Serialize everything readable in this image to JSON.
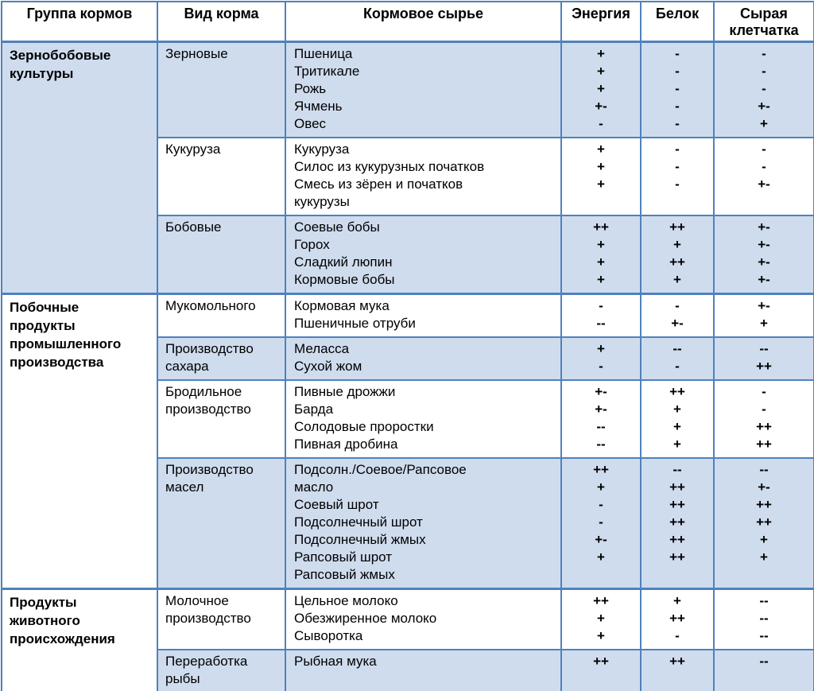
{
  "table": {
    "headers": [
      "Группа кормов",
      "Вид корма",
      "Кормовое сырье",
      "Энергия",
      "Белок",
      "Сырая клетчатка"
    ],
    "colors": {
      "band_fill": "#cfdcee",
      "border": "#4f81bd",
      "header_bg": "#ffffff",
      "text": "#000000"
    },
    "groups": [
      {
        "name": "Зернобобовые культуры",
        "subgroups": [
          {
            "feed_type": "Зерновые",
            "banded": true,
            "rows": [
              {
                "material": "Пшеница",
                "energy": "+",
                "protein": "-",
                "fiber": "-"
              },
              {
                "material": "Тритикале",
                "energy": "+",
                "protein": "-",
                "fiber": "-"
              },
              {
                "material": "Рожь",
                "energy": "+",
                "protein": "-",
                "fiber": "-"
              },
              {
                "material": "Ячмень",
                "energy": "+-",
                "protein": "-",
                "fiber": "+-"
              },
              {
                "material": "Овес",
                "energy": "-",
                "protein": "-",
                "fiber": "+"
              }
            ]
          },
          {
            "feed_type": "Кукуруза",
            "banded": false,
            "rows": [
              {
                "material": "Кукуруза",
                "energy": "+",
                "protein": "-",
                "fiber": "-"
              },
              {
                "material": "Силос из кукурузных початков",
                "energy": "+",
                "protein": "-",
                "fiber": "-"
              },
              {
                "material": "Смесь из зёрен и початков",
                "energy": "+",
                "protein": "-",
                "fiber": "+-"
              },
              {
                "material": "кукурузы",
                "energy": "",
                "protein": "",
                "fiber": ""
              }
            ]
          },
          {
            "feed_type": "Бобовые",
            "banded": true,
            "rows": [
              {
                "material": "Соевые бобы",
                "energy": "++",
                "protein": "++",
                "fiber": "+-"
              },
              {
                "material": "Горох",
                "energy": "+",
                "protein": "+",
                "fiber": "+-"
              },
              {
                "material": "Сладкий люпин",
                "energy": "+",
                "protein": "++",
                "fiber": "+-"
              },
              {
                "material": "Кормовые бобы",
                "energy": "+",
                "protein": "+",
                "fiber": "+-"
              }
            ]
          }
        ]
      },
      {
        "name": "Побочные продукты промышленного производства",
        "subgroups": [
          {
            "feed_type": "Мукомольного",
            "banded": false,
            "rows": [
              {
                "material": "Кормовая мука",
                "energy": "-",
                "protein": "-",
                "fiber": "+-"
              },
              {
                "material": "Пшеничные отруби",
                "energy": "--",
                "protein": "+-",
                "fiber": "+"
              }
            ]
          },
          {
            "feed_type": "Производство сахара",
            "banded": true,
            "rows": [
              {
                "material": "Меласса",
                "energy": "+",
                "protein": "--",
                "fiber": "--"
              },
              {
                "material": "Сухой жом",
                "energy": "-",
                "protein": "-",
                "fiber": "++"
              }
            ]
          },
          {
            "feed_type": "Бродильное производство",
            "banded": false,
            "rows": [
              {
                "material": "Пивные дрожжи",
                "energy": "+-",
                "protein": "++",
                "fiber": "-"
              },
              {
                "material": "Барда",
                "energy": "+-",
                "protein": "+",
                "fiber": "-"
              },
              {
                "material": "Солодовые проростки",
                "energy": "--",
                "protein": "+",
                "fiber": "++"
              },
              {
                "material": "Пивная дробина",
                "energy": "--",
                "protein": "+",
                "fiber": "++"
              }
            ]
          },
          {
            "feed_type": "Производство масел",
            "banded": true,
            "rows": [
              {
                "material": "Подсолн./Соевое/Рапсовое",
                "energy": "++",
                "protein": "--",
                "fiber": "--"
              },
              {
                "material": "масло",
                "energy": "+",
                "protein": "++",
                "fiber": "+-"
              },
              {
                "material": "Соевый шрот",
                "energy": "-",
                "protein": "++",
                "fiber": "++"
              },
              {
                "material": "Подсолнечный шрот",
                "energy": "-",
                "protein": "++",
                "fiber": "++"
              },
              {
                "material": "Подсолнечный жмых",
                "energy": "+-",
                "protein": "++",
                "fiber": "+"
              },
              {
                "material": "Рапсовый шрот",
                "energy": "+",
                "protein": "++",
                "fiber": "+"
              },
              {
                "material": "Рапсовый жмых",
                "energy": "",
                "protein": "",
                "fiber": ""
              }
            ]
          }
        ]
      },
      {
        "name": "Продукты животного происхождения",
        "subgroups": [
          {
            "feed_type": "Молочное производство",
            "banded": false,
            "rows": [
              {
                "material": "Цельное молоко",
                "energy": "++",
                "protein": "+",
                "fiber": "--"
              },
              {
                "material": "Обезжиренное молоко",
                "energy": "+",
                "protein": "++",
                "fiber": "--"
              },
              {
                "material": "Сыворотка",
                "energy": "+",
                "protein": "-",
                "fiber": "--"
              }
            ]
          },
          {
            "feed_type": "Переработка рыбы",
            "banded": true,
            "rows": [
              {
                "material": "Рыбная мука",
                "energy": "++",
                "protein": "++",
                "fiber": "--"
              },
              {
                "material": "",
                "energy": "",
                "protein": "",
                "fiber": ""
              }
            ]
          }
        ]
      }
    ]
  }
}
